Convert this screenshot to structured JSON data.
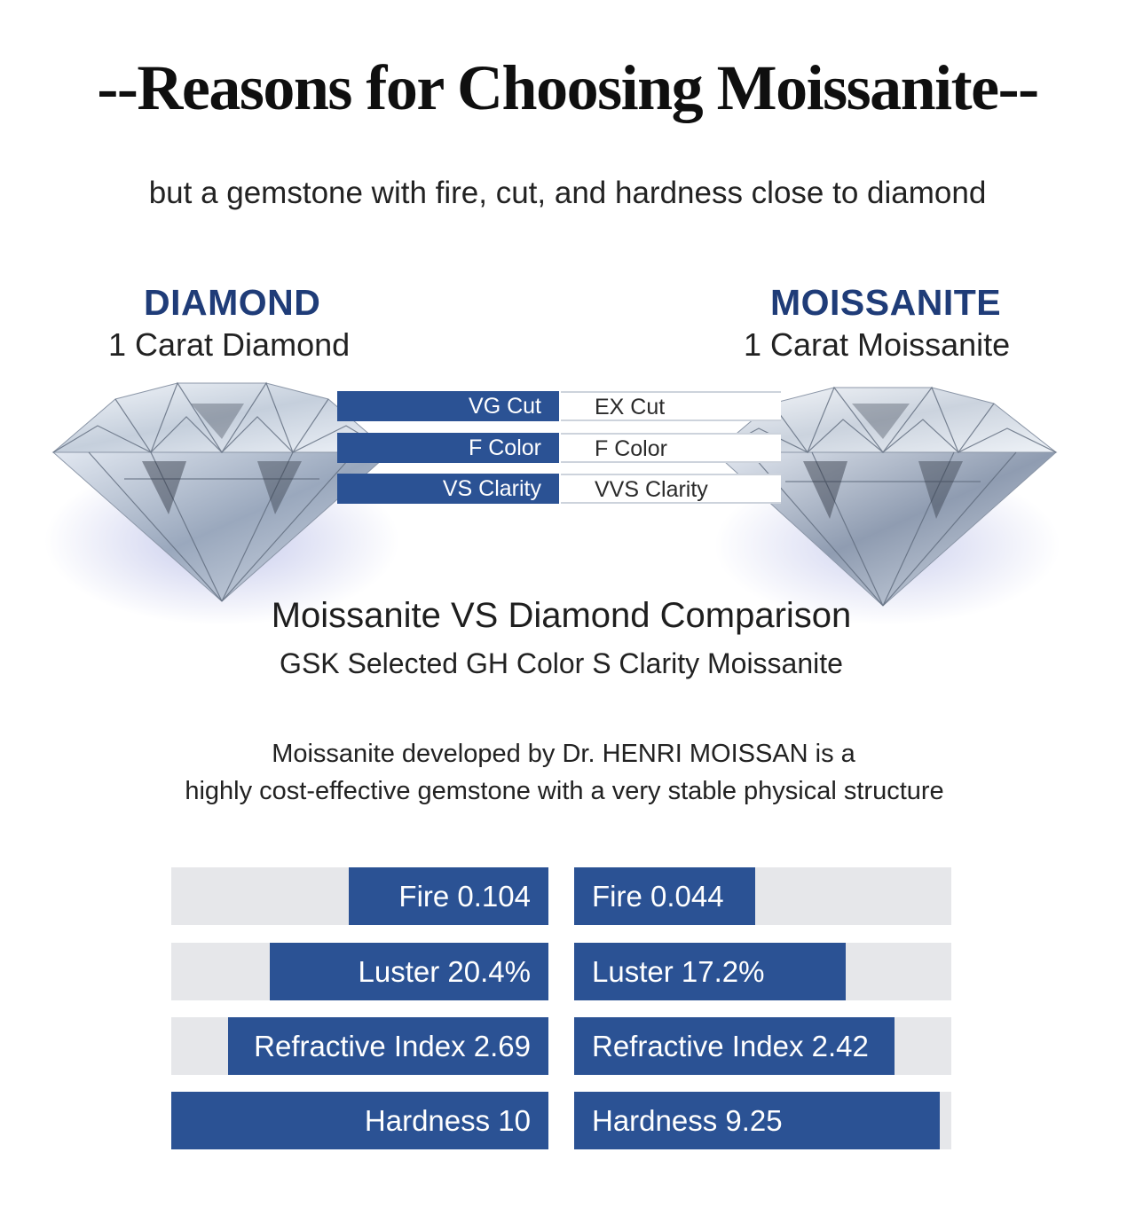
{
  "header": {
    "title": "--Reasons for Choosing Moissanite--",
    "subtitle": "but a gemstone with fire, cut, and hardness close to diamond"
  },
  "diamond": {
    "name": "DIAMOND",
    "caption": "1 Carat Diamond"
  },
  "moissanite": {
    "name": "MOISSANITE",
    "caption": "1 Carat Moissanite"
  },
  "specs": [
    {
      "diamond": "VG Cut",
      "moissanite": "EX Cut"
    },
    {
      "diamond": "F Color",
      "moissanite": "F Color"
    },
    {
      "diamond": "VS Clarity",
      "moissanite": "VVS Clarity"
    }
  ],
  "comparison": {
    "title": "Moissanite VS Diamond Comparison",
    "subtitle": "GSK Selected GH Color S Clarity Moissanite"
  },
  "description": {
    "line1": "Moissanite developed by Dr. HENRI MOISSAN is a",
    "line2": "highly cost-effective gemstone with a very stable physical structure"
  },
  "bars": [
    {
      "left_label": "Fire 0.104",
      "left_fill": 0.53,
      "right_label": "Fire 0.044",
      "right_fill": 0.48
    },
    {
      "left_label": "Luster 20.4%",
      "left_fill": 0.74,
      "right_label": "Luster 17.2%",
      "right_fill": 0.72
    },
    {
      "left_label": "Refractive Index 2.69",
      "left_fill": 0.85,
      "right_label": "Refractive Index 2.42",
      "right_fill": 0.85
    },
    {
      "left_label": "Hardness 10",
      "left_fill": 1.0,
      "right_label": "Hardness 9.25",
      "right_fill": 0.97
    }
  ],
  "colors": {
    "accent": "#2b5294",
    "track": "#e6e7ea",
    "name_blue": "#1f3c78"
  }
}
